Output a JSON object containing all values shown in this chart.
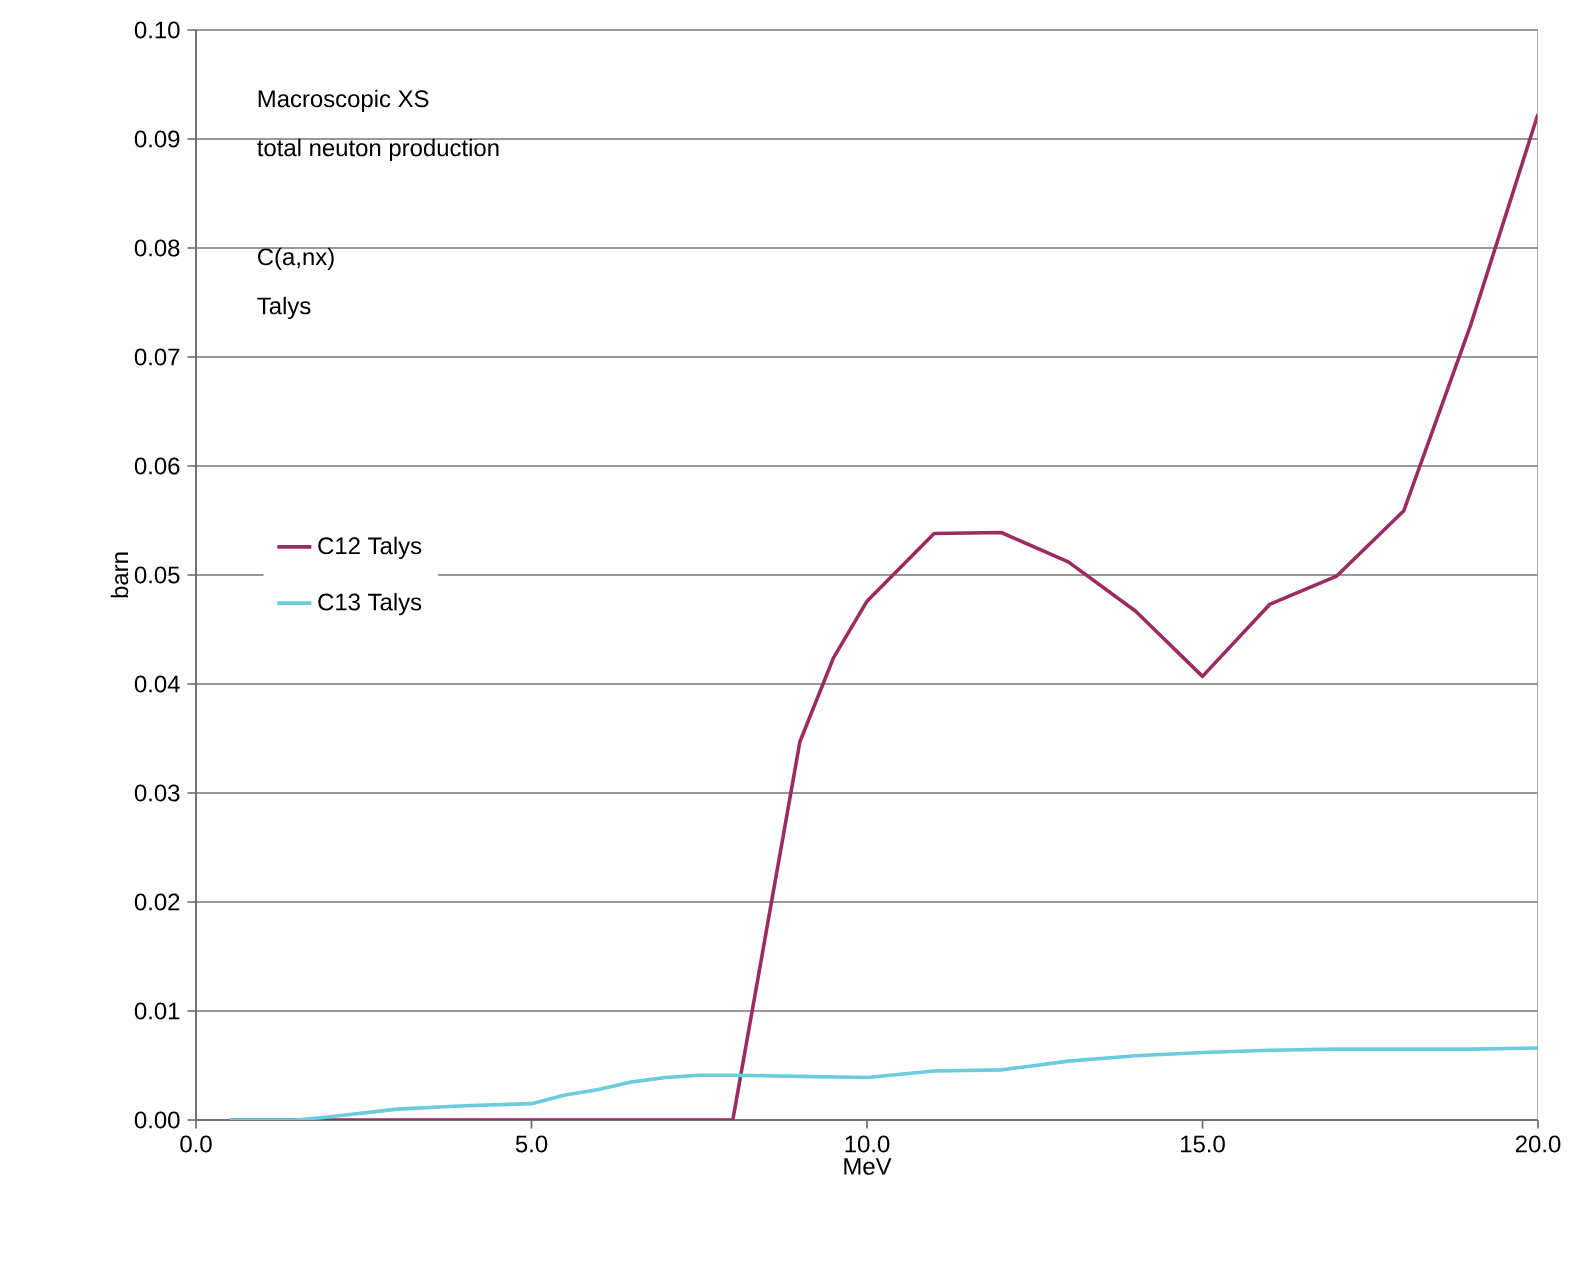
{
  "chart_data": {
    "type": "line",
    "xlabel": "MeV",
    "ylabel": "barn",
    "annotations": [
      "Macroscopic XS",
      "total neuton production",
      "C(a,nx)",
      "Talys"
    ],
    "xlim": [
      0,
      20
    ],
    "ylim": [
      0,
      0.1
    ],
    "xticks": [
      {
        "value": 0,
        "label": "0.0"
      },
      {
        "value": 5,
        "label": "5.0"
      },
      {
        "value": 10,
        "label": "10.0"
      },
      {
        "value": 15,
        "label": "15.0"
      },
      {
        "value": 20,
        "label": "20.0"
      }
    ],
    "yticks": [
      {
        "value": 0,
        "label": "0.00"
      },
      {
        "value": 0.01,
        "label": "0.01"
      },
      {
        "value": 0.02,
        "label": "0.02"
      },
      {
        "value": 0.03,
        "label": "0.03"
      },
      {
        "value": 0.04,
        "label": "0.04"
      },
      {
        "value": 0.05,
        "label": "0.05"
      },
      {
        "value": 0.06,
        "label": "0.06"
      },
      {
        "value": 0.07,
        "label": "0.07"
      },
      {
        "value": 0.08,
        "label": "0.08"
      },
      {
        "value": 0.09,
        "label": "0.09"
      },
      {
        "value": 0.1,
        "label": "0.10"
      }
    ],
    "grid": "y",
    "legend": "left",
    "marker": "none",
    "line_style": "solid",
    "series": [
      {
        "name": "C12 Talys",
        "color": "#9b2c62",
        "x": [
          0.5,
          1,
          2,
          3,
          4,
          5,
          6,
          7,
          8,
          9,
          9.5,
          10,
          11,
          12,
          13,
          14,
          15,
          16,
          17,
          18,
          19,
          20
        ],
        "values": [
          0,
          0,
          0,
          0,
          0,
          0,
          0,
          0,
          0,
          0.0347,
          0.0424,
          0.0476,
          0.0538,
          0.0539,
          0.0512,
          0.0467,
          0.0407,
          0.0473,
          0.0499,
          0.0559,
          0.073,
          0.0923
        ]
      },
      {
        "name": "C13 Talys",
        "color": "#6ccbdc",
        "x": [
          0.5,
          1,
          1.5,
          2,
          3,
          4,
          5,
          5.5,
          6,
          6.5,
          7,
          7.5,
          8,
          9,
          10,
          11,
          12,
          13,
          14,
          15,
          16,
          17,
          18,
          19,
          20
        ],
        "values": [
          0,
          0,
          0,
          0.0003,
          0.001,
          0.0013,
          0.0015,
          0.0023,
          0.0028,
          0.0035,
          0.0039,
          0.0041,
          0.0041,
          0.004,
          0.0039,
          0.0045,
          0.0046,
          0.0054,
          0.0059,
          0.0062,
          0.0064,
          0.0065,
          0.0065,
          0.0065,
          0.0066
        ]
      }
    ]
  }
}
